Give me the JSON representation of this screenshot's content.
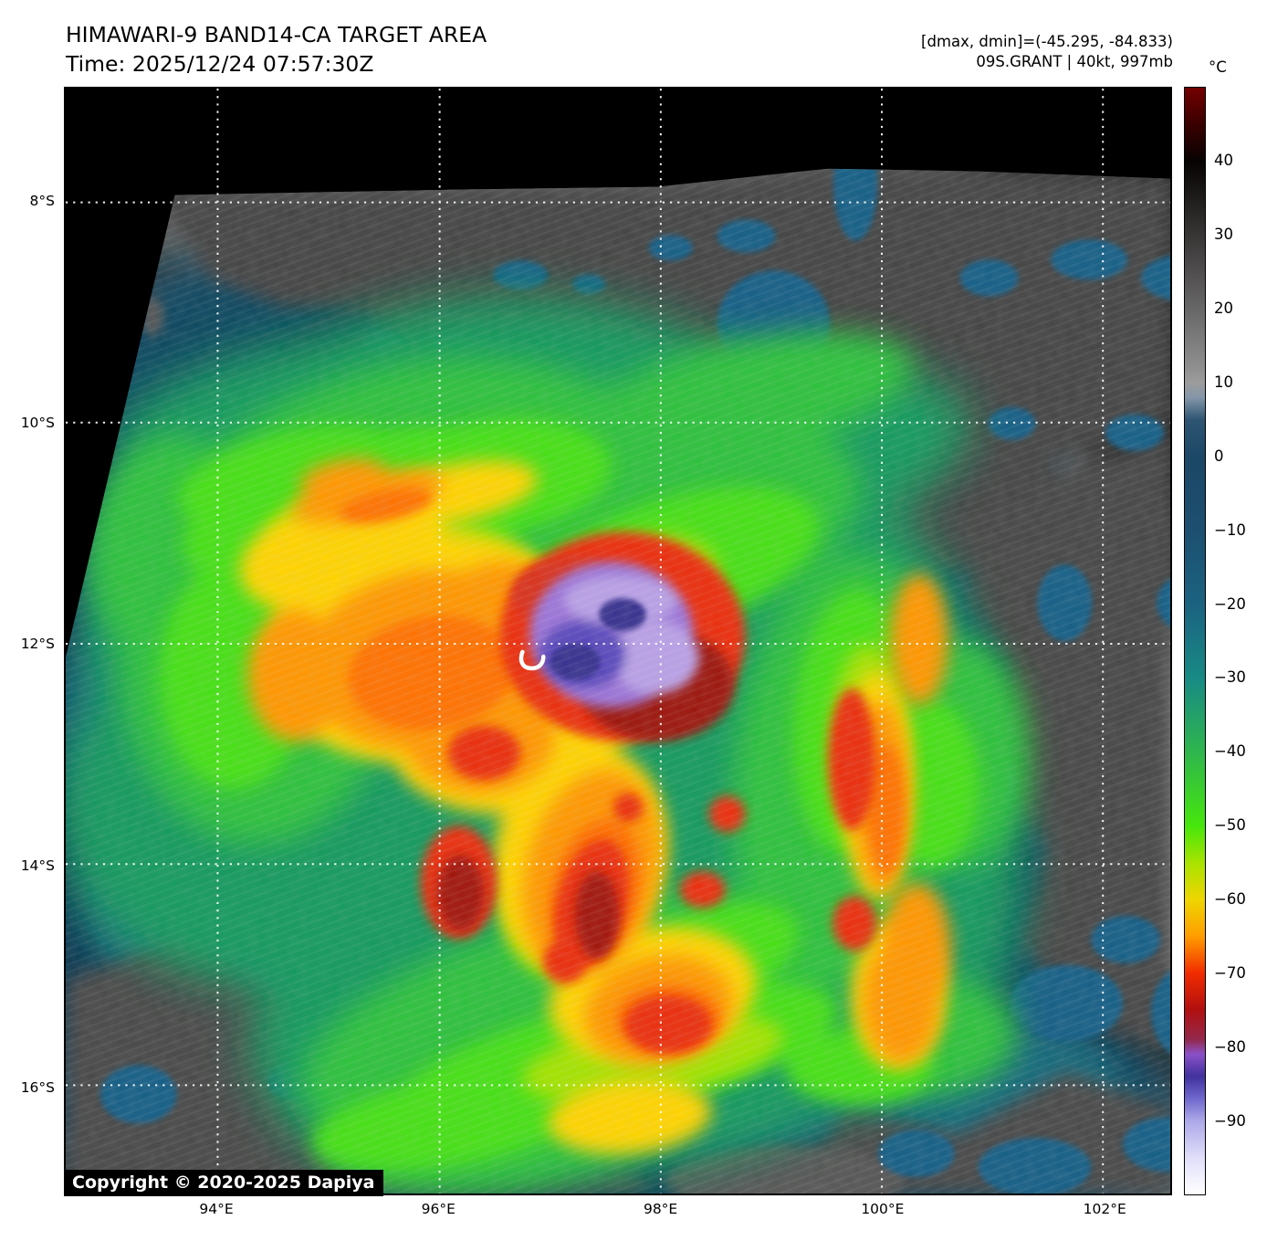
{
  "header": {
    "title": "HIMAWARI-9 BAND14-CA TARGET AREA",
    "time_line": "Time: 2025/12/24 07:57:30Z",
    "range_line": "[dmax, dmin]=(-45.295, -84.833)",
    "storm_line": "09S.GRANT | 40kt, 997mb"
  },
  "map": {
    "copyright": "Copyright © 2020-2025 Dapiya"
  },
  "axes": {
    "lat_ticks": [
      {
        "deg": 8,
        "label": "8°S"
      },
      {
        "deg": 10,
        "label": "10°S"
      },
      {
        "deg": 12,
        "label": "12°S"
      },
      {
        "deg": 14,
        "label": "14°S"
      },
      {
        "deg": 16,
        "label": "16°S"
      }
    ],
    "lon_ticks": [
      {
        "deg": 94,
        "label": "94°E"
      },
      {
        "deg": 96,
        "label": "96°E"
      },
      {
        "deg": 98,
        "label": "98°E"
      },
      {
        "deg": 100,
        "label": "100°E"
      },
      {
        "deg": 102,
        "label": "102°E"
      }
    ]
  },
  "colorbar": {
    "unit_label": "°C",
    "vmax": 50,
    "vmin": -100,
    "ticks": [
      {
        "value": 40,
        "label": "40"
      },
      {
        "value": 30,
        "label": "30"
      },
      {
        "value": 20,
        "label": "20"
      },
      {
        "value": 10,
        "label": "10"
      },
      {
        "value": 0,
        "label": "0"
      },
      {
        "value": -10,
        "label": "−10"
      },
      {
        "value": -20,
        "label": "−20"
      },
      {
        "value": -30,
        "label": "−30"
      },
      {
        "value": -40,
        "label": "−40"
      },
      {
        "value": -50,
        "label": "−50"
      },
      {
        "value": -60,
        "label": "−60"
      },
      {
        "value": -70,
        "label": "−70"
      },
      {
        "value": -80,
        "label": "−80"
      },
      {
        "value": -90,
        "label": "−90"
      }
    ],
    "stops": [
      {
        "value": 50,
        "color": "#730000"
      },
      {
        "value": 45,
        "color": "#3a0000"
      },
      {
        "value": 40,
        "color": "#070303"
      },
      {
        "value": 12,
        "color": "#8f8f8f"
      },
      {
        "value": 10,
        "color": "#9c9c9c"
      },
      {
        "value": 8,
        "color": "#8496a8"
      },
      {
        "value": 5,
        "color": "#2e5573"
      },
      {
        "value": 0,
        "color": "#1c4766"
      },
      {
        "value": -10,
        "color": "#1d4f70"
      },
      {
        "value": -20,
        "color": "#1b6280"
      },
      {
        "value": -30,
        "color": "#188a85"
      },
      {
        "value": -40,
        "color": "#2fb54e"
      },
      {
        "value": -50,
        "color": "#46e60d"
      },
      {
        "value": -55,
        "color": "#a8e300"
      },
      {
        "value": -60,
        "color": "#eed600"
      },
      {
        "value": -65,
        "color": "#ff9d00"
      },
      {
        "value": -70,
        "color": "#f12c00"
      },
      {
        "value": -75,
        "color": "#b11010"
      },
      {
        "value": -79,
        "color": "#93284c"
      },
      {
        "value": -81,
        "color": "#8b51c8"
      },
      {
        "value": -84,
        "color": "#41319e"
      },
      {
        "value": -87,
        "color": "#6f68cc"
      },
      {
        "value": -90,
        "color": "#aca8e8"
      },
      {
        "value": -95,
        "color": "#e0defa"
      },
      {
        "value": -100,
        "color": "#ffffff"
      }
    ]
  }
}
